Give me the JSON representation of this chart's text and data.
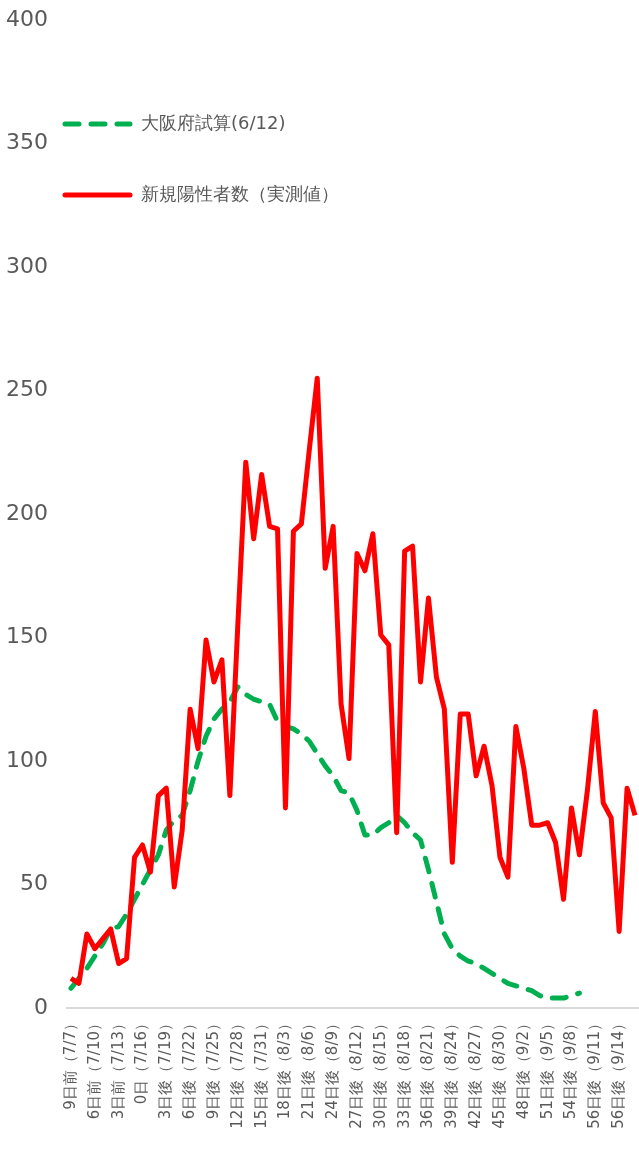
{
  "chart_data": {
    "type": "line",
    "categories": [
      "9日前（7/7）",
      null,
      null,
      "6日前（7/10）",
      null,
      null,
      "3日前（7/13）",
      null,
      null,
      "0日（7/16）",
      null,
      null,
      "3日後（7/19）",
      null,
      null,
      "6日後（7/22）",
      null,
      null,
      "9日後（7/25）",
      null,
      null,
      "12日後（7/28）",
      null,
      null,
      "15日後（7/31）",
      null,
      null,
      "18日後（8/3）",
      null,
      null,
      "21日後（8/6）",
      null,
      null,
      "24日後（8/9）",
      null,
      null,
      "27日後（8/12）",
      null,
      null,
      "30日後（8/15）",
      null,
      null,
      "33日後（8/18）",
      null,
      null,
      "36日後（8/21）",
      null,
      null,
      "39日後（8/24）",
      null,
      null,
      "42日後（8/27）",
      null,
      null,
      "45日後（8/30）",
      null,
      null,
      "48日後（9/2）",
      null,
      null,
      "51日後（9/5）",
      null,
      null,
      "54日後（9/8）",
      null,
      null,
      "56日後（9/11）",
      null,
      null,
      "56日後（9/14）",
      null,
      null
    ],
    "series": [
      {
        "name": "大阪府試算(6/12)",
        "color": "#00b050",
        "line_style": "dashed",
        "values": [
          8,
          12,
          16,
          21,
          26,
          32,
          33,
          38,
          44,
          50,
          56,
          62,
          72,
          76,
          78,
          88,
          100,
          110,
          117,
          121,
          124,
          130,
          127,
          125,
          124,
          123,
          116,
          114,
          113,
          111,
          108,
          103,
          98,
          94,
          88,
          87,
          80,
          70,
          70,
          73,
          75,
          78,
          75,
          71,
          68,
          56,
          43,
          30,
          24,
          21,
          19,
          18,
          16,
          14,
          12,
          10,
          9,
          8,
          7,
          5,
          4,
          4,
          4,
          5,
          6,
          null,
          null,
          null,
          null,
          null,
          null,
          null
        ]
      },
      {
        "name": "新規陽性者数（実測値）",
        "color": "#ff0000",
        "line_style": "solid",
        "values": [
          12,
          10,
          30,
          24,
          28,
          32,
          18,
          20,
          61,
          66,
          55,
          86,
          89,
          49,
          72,
          121,
          105,
          149,
          132,
          141,
          86,
          155,
          221,
          190,
          216,
          195,
          194,
          81,
          193,
          196,
          226,
          255,
          178,
          195,
          123,
          101,
          184,
          177,
          192,
          151,
          147,
          71,
          185,
          187,
          132,
          166,
          134,
          121,
          59,
          119,
          119,
          94,
          106,
          90,
          61,
          53,
          114,
          97,
          74,
          74,
          75,
          67,
          44,
          81,
          62,
          88,
          120,
          83,
          77,
          31,
          89,
          78
        ]
      }
    ],
    "ylim": [
      0,
      400
    ],
    "yticks": [
      0,
      50,
      100,
      150,
      200,
      250,
      300,
      350,
      400
    ],
    "marker": "none",
    "legend": "top left"
  }
}
